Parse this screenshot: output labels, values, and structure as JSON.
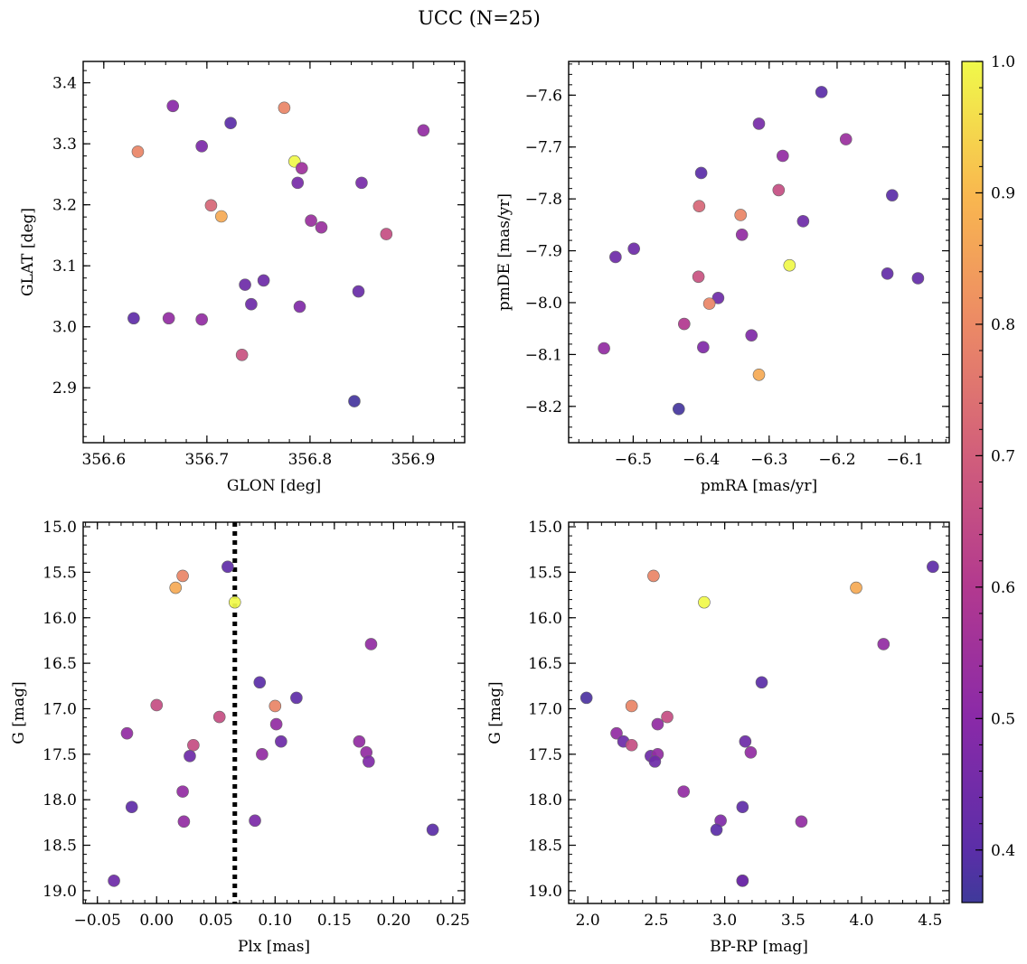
{
  "figure": {
    "title": "UCC (N=25)"
  },
  "colorbar": {
    "cmap": "plasma",
    "min": 0.36,
    "max": 1.0,
    "ticks": [
      "0.4",
      "0.5",
      "0.6",
      "0.7",
      "0.8",
      "0.9",
      "1.0"
    ]
  },
  "chart_data": [
    {
      "type": "scatter",
      "name": "",
      "xlabel": "GLON [deg]",
      "ylabel": "GLAT [deg]",
      "xlim": [
        356.58,
        356.95
      ],
      "ylim": [
        2.81,
        3.435
      ],
      "xticks": [
        "356.6",
        "356.7",
        "356.8",
        "356.9"
      ],
      "yticks": [
        "2.9",
        "3.0",
        "3.1",
        "3.2",
        "3.3",
        "3.4"
      ],
      "y_inverted": false,
      "x": [
        356.667,
        356.723,
        356.775,
        356.91,
        356.633,
        356.695,
        356.785,
        356.792,
        356.788,
        356.85,
        356.704,
        356.714,
        356.801,
        356.811,
        356.874,
        356.737,
        356.755,
        356.743,
        356.847,
        356.629,
        356.663,
        356.695,
        356.79,
        356.734,
        356.843
      ],
      "y": [
        3.362,
        3.334,
        3.359,
        3.322,
        3.287,
        3.296,
        3.271,
        3.26,
        3.236,
        3.236,
        3.199,
        3.181,
        3.174,
        3.163,
        3.152,
        3.069,
        3.076,
        3.037,
        3.058,
        3.014,
        3.014,
        3.012,
        3.033,
        2.954,
        2.878
      ]
    },
    {
      "type": "scatter",
      "name": "",
      "xlabel": "pmRA [mas/yr]",
      "ylabel": "pmDE [mas/yr]",
      "xlim": [
        -6.595,
        -6.035
      ],
      "ylim": [
        -8.27,
        -7.535
      ],
      "xticks": [
        "-6.5",
        "-6.4",
        "-6.3",
        "-6.2",
        "-6.1"
      ],
      "yticks": [
        "-8.2",
        "-8.1",
        "-8.0",
        "-7.9",
        "-7.8",
        "-7.7",
        "-7.6"
      ],
      "y_inverted": false,
      "x": [
        -6.223,
        -6.315,
        -6.187,
        -6.28,
        -6.4,
        -6.119,
        -6.286,
        -6.403,
        -6.342,
        -6.25,
        -6.34,
        -6.499,
        -6.526,
        -6.27,
        -6.126,
        -6.081,
        -6.404,
        -6.375,
        -6.388,
        -6.425,
        -6.543,
        -6.397,
        -6.326,
        -6.315,
        -6.433
      ],
      "y": [
        -7.594,
        -7.655,
        -7.685,
        -7.717,
        -7.75,
        -7.793,
        -7.783,
        -7.814,
        -7.831,
        -7.843,
        -7.869,
        -7.896,
        -7.912,
        -7.928,
        -7.944,
        -7.953,
        -7.95,
        -7.991,
        -8.002,
        -8.041,
        -8.088,
        -8.086,
        -8.063,
        -8.139,
        -8.205
      ]
    },
    {
      "type": "scatter",
      "name": "",
      "xlabel": "Plx [mas]",
      "ylabel": "G [mag]",
      "xlim": [
        -0.062,
        0.26
      ],
      "ylim": [
        19.14,
        14.95
      ],
      "xticks": [
        "-0.05",
        "0.00",
        "0.05",
        "0.10",
        "0.15",
        "0.20",
        "0.25"
      ],
      "yticks": [
        "15.0",
        "15.5",
        "16.0",
        "16.5",
        "17.0",
        "17.5",
        "18.0",
        "18.5",
        "19.0"
      ],
      "y_inverted": true,
      "vline": 0.066,
      "x": [
        0.06,
        0.022,
        0.016,
        0.066,
        0.181,
        0.087,
        0.0,
        0.1,
        0.118,
        0.053,
        0.101,
        -0.025,
        0.031,
        0.105,
        0.171,
        0.028,
        0.089,
        0.177,
        0.179,
        0.022,
        -0.021,
        0.023,
        0.083,
        0.233,
        -0.036
      ],
      "y": [
        15.44,
        15.54,
        15.67,
        15.83,
        16.29,
        16.71,
        16.96,
        16.97,
        16.88,
        17.09,
        17.17,
        17.27,
        17.4,
        17.36,
        17.36,
        17.52,
        17.5,
        17.48,
        17.58,
        17.91,
        18.08,
        18.24,
        18.23,
        18.33,
        18.89
      ]
    },
    {
      "type": "scatter",
      "name": "",
      "xlabel": "BP-RP [mag]",
      "ylabel": "G [mag]",
      "xlim": [
        1.86,
        4.64
      ],
      "ylim": [
        19.14,
        14.95
      ],
      "xticks": [
        "2.0",
        "2.5",
        "3.0",
        "3.5",
        "4.0",
        "4.5"
      ],
      "yticks": [
        "15.0",
        "15.5",
        "16.0",
        "16.5",
        "17.0",
        "17.5",
        "18.0",
        "18.5",
        "19.0"
      ],
      "y_inverted": true,
      "x": [
        4.52,
        2.48,
        3.96,
        2.85,
        4.16,
        3.27,
        1.99,
        2.32,
        2.58,
        2.21,
        2.51,
        2.26,
        2.32,
        3.15,
        3.19,
        2.46,
        2.51,
        2.49,
        2.7,
        3.13,
        2.97,
        3.56,
        2.94,
        3.13,
        3.13
      ],
      "y": [
        15.44,
        15.54,
        15.67,
        15.83,
        16.29,
        16.71,
        16.88,
        16.97,
        17.09,
        17.27,
        17.17,
        17.36,
        17.4,
        17.36,
        17.48,
        17.52,
        17.5,
        17.58,
        17.91,
        18.08,
        18.23,
        18.24,
        18.33,
        18.89,
        18.89
      ]
    }
  ],
  "point_colors": {
    "panel1": [
      0.5,
      0.4,
      0.79,
      0.52,
      0.79,
      0.47,
      1.0,
      0.55,
      0.46,
      0.46,
      0.72,
      0.87,
      0.54,
      0.54,
      0.66,
      0.44,
      0.44,
      0.44,
      0.43,
      0.41,
      0.52,
      0.52,
      0.48,
      0.67,
      0.37
    ],
    "panel2": [
      0.4,
      0.46,
      0.54,
      0.52,
      0.4,
      0.4,
      0.66,
      0.72,
      0.79,
      0.44,
      0.52,
      0.44,
      0.44,
      1.0,
      0.42,
      0.42,
      0.67,
      0.44,
      0.79,
      0.6,
      0.52,
      0.48,
      0.48,
      0.87,
      0.37
    ],
    "panel3": [
      0.41,
      0.79,
      0.87,
      1.0,
      0.52,
      0.4,
      0.66,
      0.79,
      0.41,
      0.66,
      0.52,
      0.52,
      0.66,
      0.44,
      0.52,
      0.44,
      0.52,
      0.52,
      0.48,
      0.52,
      0.41,
      0.52,
      0.47,
      0.4,
      0.44
    ],
    "panel4": [
      0.41,
      0.79,
      0.87,
      1.0,
      0.52,
      0.4,
      0.38,
      0.79,
      0.66,
      0.52,
      0.52,
      0.44,
      0.66,
      0.44,
      0.52,
      0.44,
      0.52,
      0.44,
      0.52,
      0.41,
      0.48,
      0.52,
      0.4,
      0.44,
      0.44
    ]
  }
}
